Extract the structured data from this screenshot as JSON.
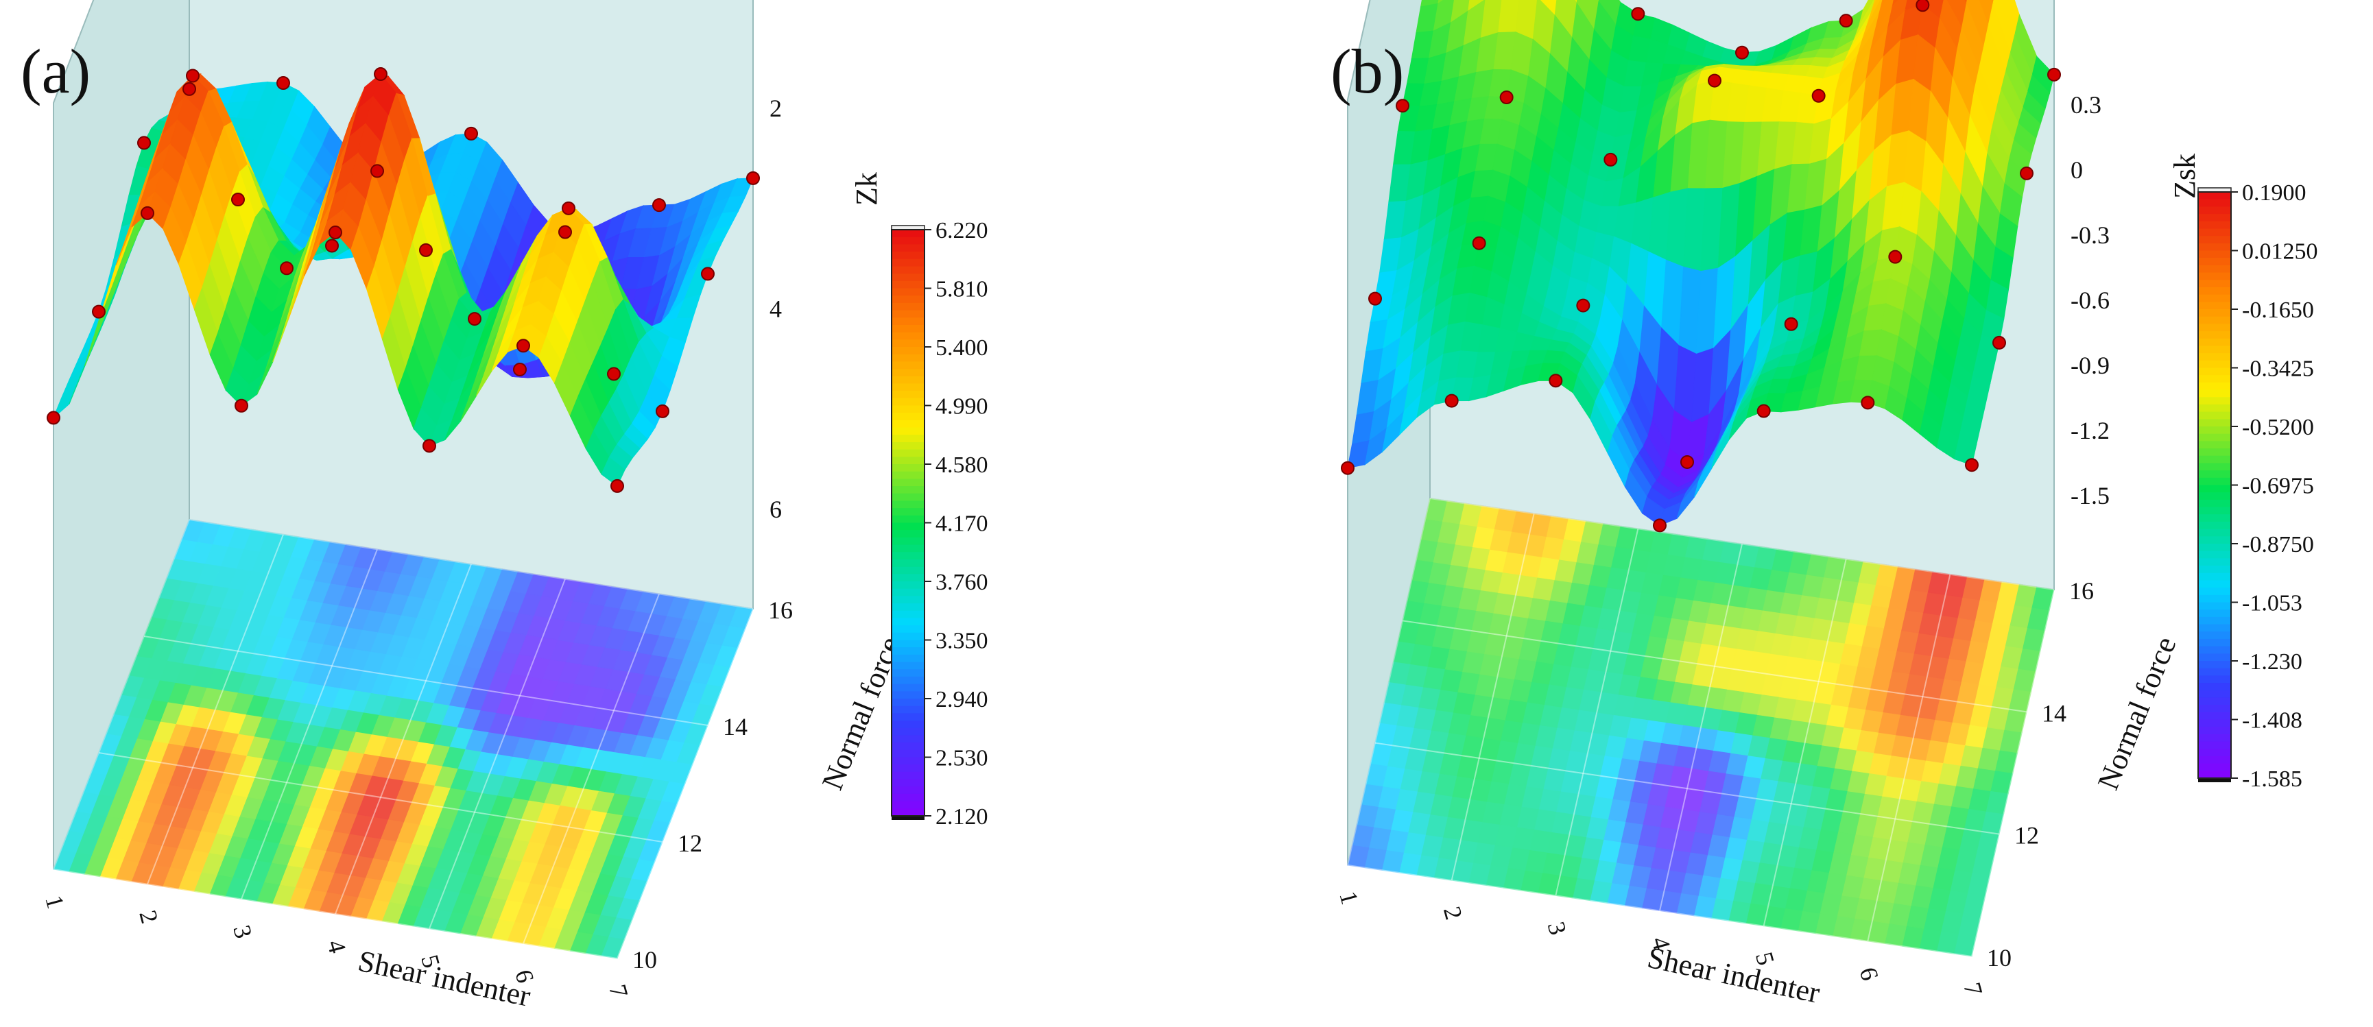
{
  "chart_data": [
    {
      "type": "heatmap",
      "panel_label": "(a)",
      "z_label": "Zk",
      "xlabel": "Shear indenter",
      "ylabel": "Normal force",
      "x": [
        1,
        2,
        3,
        4,
        5,
        6,
        7
      ],
      "y": [
        10,
        12,
        14,
        16
      ],
      "x_ticks": [
        "1",
        "2",
        "3",
        "4",
        "5",
        "6",
        "7"
      ],
      "y_ticks": [
        "10",
        "12",
        "14",
        "16"
      ],
      "z_ticks": [
        "2",
        "4",
        "6"
      ],
      "z": [
        [
          3.6,
          5.7,
          4.0,
          5.8,
          3.9,
          5.0,
          3.8
        ],
        [
          3.5,
          5.9,
          4.2,
          6.2,
          4.0,
          5.2,
          3.4
        ],
        [
          4.0,
          3.6,
          3.3,
          3.4,
          2.4,
          2.5,
          3.6
        ],
        [
          3.4,
          3.6,
          2.9,
          3.4,
          2.6,
          3.0,
          3.4
        ]
      ],
      "zlim": [
        2.12,
        6.22
      ],
      "colorbar_ticks": [
        "6.220",
        "5.810",
        "5.400",
        "4.990",
        "4.580",
        "4.170",
        "3.760",
        "3.350",
        "2.940",
        "2.530",
        "2.120"
      ],
      "grid": true,
      "colormap": [
        "#8800ff",
        "#3340ff",
        "#00d8ff",
        "#00e050",
        "#ffee00",
        "#ff8800",
        "#e81010"
      ]
    },
    {
      "type": "heatmap",
      "panel_label": "(b)",
      "z_label": "Zsk",
      "xlabel": "Shear indenter",
      "ylabel": "Normal force",
      "x": [
        1,
        2,
        3,
        4,
        5,
        6,
        7
      ],
      "y": [
        10,
        12,
        14,
        16
      ],
      "x_ticks": [
        "1",
        "2",
        "3",
        "4",
        "5",
        "6",
        "7"
      ],
      "y_ticks": [
        "10",
        "12",
        "14",
        "16"
      ],
      "z_ticks": [
        "0.3",
        "0",
        "-0.3",
        "-0.6",
        "-0.9",
        "-1.2",
        "-1.5"
      ],
      "z": [
        [
          -1.2,
          -0.85,
          -0.7,
          -1.25,
          -0.7,
          -0.6,
          -0.8
        ],
        [
          -1.0,
          -0.7,
          -0.9,
          -1.5,
          -0.85,
          -0.5,
          -0.8
        ],
        [
          -0.7,
          -0.6,
          -0.8,
          -0.4,
          -0.4,
          0.05,
          -0.6
        ],
        [
          -0.6,
          -0.2,
          -0.7,
          -0.8,
          -0.6,
          0.19,
          -0.7
        ]
      ],
      "zlim": [
        -1.585,
        0.19
      ],
      "colorbar_ticks": [
        "0.1900",
        "0.01250",
        "-0.1650",
        "-0.3425",
        "-0.5200",
        "-0.6975",
        "-0.8750",
        "-1.053",
        "-1.230",
        "-1.408",
        "-1.585"
      ],
      "grid": true,
      "colormap": [
        "#8800ff",
        "#3340ff",
        "#00d8ff",
        "#00e050",
        "#ffee00",
        "#ff8800",
        "#e81010"
      ]
    }
  ]
}
